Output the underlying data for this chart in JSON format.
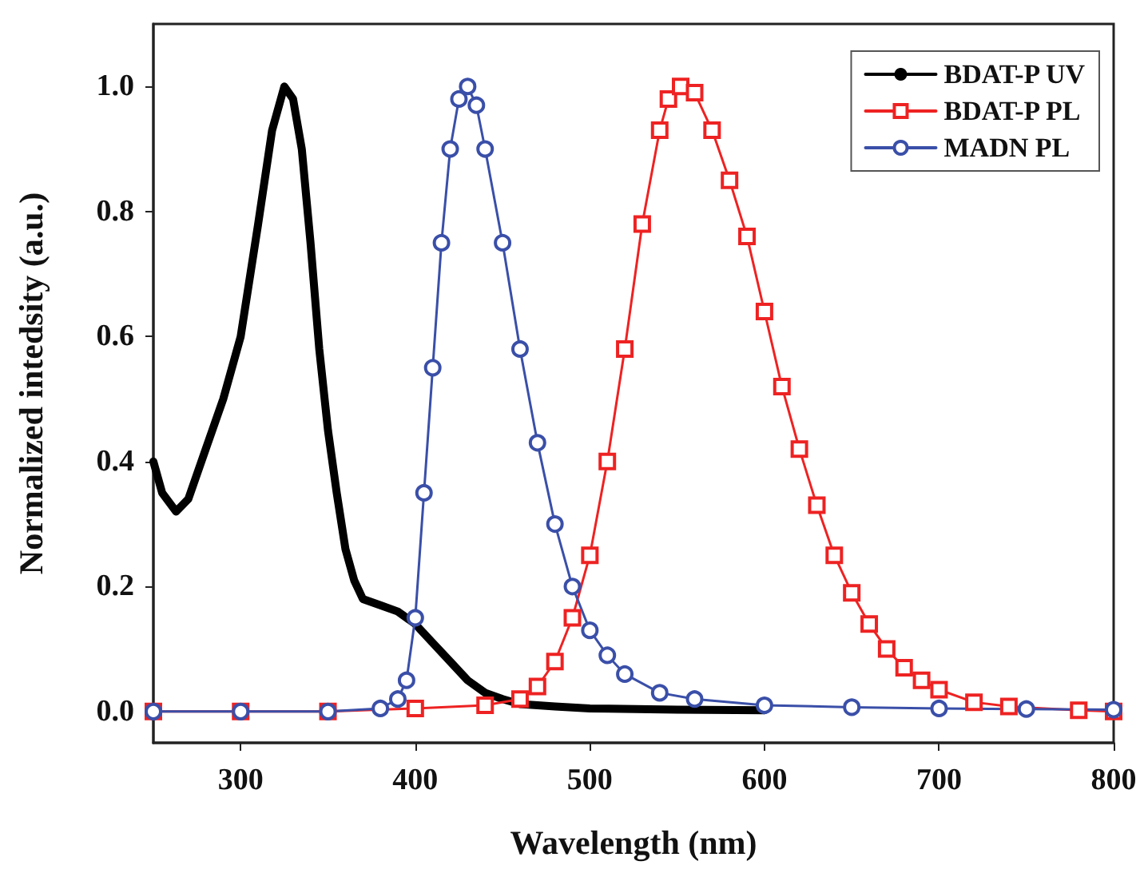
{
  "chart_data": {
    "type": "line",
    "xlabel": "Wavelength (nm)",
    "ylabel": "Normalized intedsity (a.u.)",
    "xlim": [
      250,
      800
    ],
    "xticks": [
      300,
      400,
      500,
      600,
      700,
      800
    ],
    "ylim": [
      -0.05,
      1.1
    ],
    "yticks": [
      {
        "value": 0,
        "label": "0.0"
      },
      0.2,
      0.4,
      0.6,
      0.8,
      {
        "value": 1,
        "label": "1.0"
      }
    ],
    "grid": false,
    "legend": "top right",
    "series": [
      {
        "name": "BDAT-P UV",
        "color": "#000000",
        "marker": "none",
        "x": [
          250,
          255,
          263,
          270,
          280,
          290,
          300,
          310,
          318,
          325,
          330,
          335,
          340,
          345,
          350,
          355,
          360,
          365,
          370,
          380,
          390,
          400,
          410,
          420,
          430,
          440,
          450,
          460,
          480,
          500,
          550,
          600
        ],
        "values": [
          0.4,
          0.35,
          0.32,
          0.34,
          0.42,
          0.5,
          0.6,
          0.78,
          0.93,
          1.0,
          0.98,
          0.9,
          0.75,
          0.58,
          0.45,
          0.35,
          0.26,
          0.21,
          0.18,
          0.17,
          0.16,
          0.14,
          0.11,
          0.08,
          0.05,
          0.03,
          0.02,
          0.012,
          0.008,
          0.005,
          0.003,
          0.002
        ]
      },
      {
        "name": "BDAT-P PL",
        "color": "#ee2222",
        "marker": "square",
        "x": [
          250,
          300,
          350,
          400,
          440,
          460,
          470,
          480,
          490,
          500,
          510,
          520,
          530,
          540,
          545,
          552,
          560,
          570,
          580,
          590,
          600,
          610,
          620,
          630,
          640,
          650,
          660,
          670,
          680,
          690,
          700,
          720,
          740,
          780,
          800
        ],
        "values": [
          0,
          0,
          0,
          0.005,
          0.01,
          0.02,
          0.04,
          0.08,
          0.15,
          0.25,
          0.4,
          0.58,
          0.78,
          0.93,
          0.98,
          1.0,
          0.99,
          0.93,
          0.85,
          0.76,
          0.64,
          0.52,
          0.42,
          0.33,
          0.25,
          0.19,
          0.14,
          0.1,
          0.07,
          0.05,
          0.035,
          0.015,
          0.008,
          0.002,
          0
        ]
      },
      {
        "name": "MADN PL",
        "color": "#3a4fa8",
        "marker": "circle",
        "x": [
          250,
          300,
          350,
          380,
          390,
          395,
          400,
          405,
          410,
          415,
          420,
          425,
          430,
          435,
          440,
          450,
          460,
          470,
          480,
          490,
          500,
          510,
          520,
          540,
          560,
          600,
          650,
          700,
          750,
          800
        ],
        "values": [
          0,
          0,
          0,
          0.005,
          0.02,
          0.05,
          0.15,
          0.35,
          0.55,
          0.75,
          0.9,
          0.98,
          1.0,
          0.97,
          0.9,
          0.75,
          0.58,
          0.43,
          0.3,
          0.2,
          0.13,
          0.09,
          0.06,
          0.03,
          0.02,
          0.01,
          0.007,
          0.005,
          0.004,
          0.003
        ]
      }
    ]
  }
}
